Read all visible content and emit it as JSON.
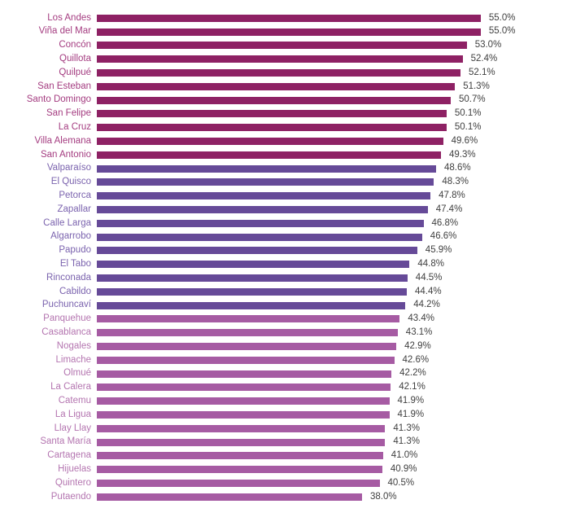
{
  "chart_data": {
    "type": "bar",
    "orientation": "horizontal",
    "title": "",
    "xlabel": "",
    "ylabel": "",
    "xlim": [
      0,
      55
    ],
    "grid": false,
    "legend": "none",
    "value_suffix": "%",
    "value_decimals": 1,
    "categories": [
      "Los Andes",
      "Viña del Mar",
      "Concón",
      "Quillota",
      "Quilpué",
      "San Esteban",
      "Santo Domingo",
      "San Felipe",
      "La Cruz",
      "Villa Alemana",
      "San Antonio",
      "Valparaíso",
      "El Quisco",
      "Petorca",
      "Zapallar",
      "Calle Larga",
      "Algarrobo",
      "Papudo",
      "El Tabo",
      "Rinconada",
      "Cabildo",
      "Puchuncaví",
      "Panquehue",
      "Casablanca",
      "Nogales",
      "Limache",
      "Olmué",
      "La Calera",
      "Catemu",
      "La Ligua",
      "Llay Llay",
      "Santa María",
      "Cartagena",
      "Hijuelas",
      "Quintero",
      "Putaendo"
    ],
    "values": [
      55.0,
      55.0,
      53.0,
      52.4,
      52.1,
      51.3,
      50.7,
      50.1,
      50.1,
      49.6,
      49.3,
      48.6,
      48.3,
      47.8,
      47.4,
      46.8,
      46.6,
      45.9,
      44.8,
      44.5,
      44.4,
      44.2,
      43.4,
      43.1,
      42.9,
      42.6,
      42.2,
      42.1,
      41.9,
      41.9,
      41.3,
      41.3,
      41.0,
      40.9,
      40.5,
      38.0
    ],
    "groups": [
      "high",
      "high",
      "high",
      "high",
      "high",
      "high",
      "high",
      "high",
      "high",
      "high",
      "high",
      "mid",
      "mid",
      "mid",
      "mid",
      "mid",
      "mid",
      "mid",
      "mid",
      "mid",
      "mid",
      "mid",
      "low",
      "low",
      "low",
      "low",
      "low",
      "low",
      "low",
      "low",
      "low",
      "low",
      "low",
      "low",
      "low",
      "low"
    ],
    "palette": {
      "high": {
        "bar_color": "#8E2164",
        "label_color": "#A43C80"
      },
      "mid": {
        "bar_color": "#664A98",
        "label_color": "#7B63AE"
      },
      "low": {
        "bar_color": "#A65BA3",
        "label_color": "#B475B0"
      }
    },
    "value_label_color": "#404040",
    "background_color": "#FFFFFF"
  }
}
